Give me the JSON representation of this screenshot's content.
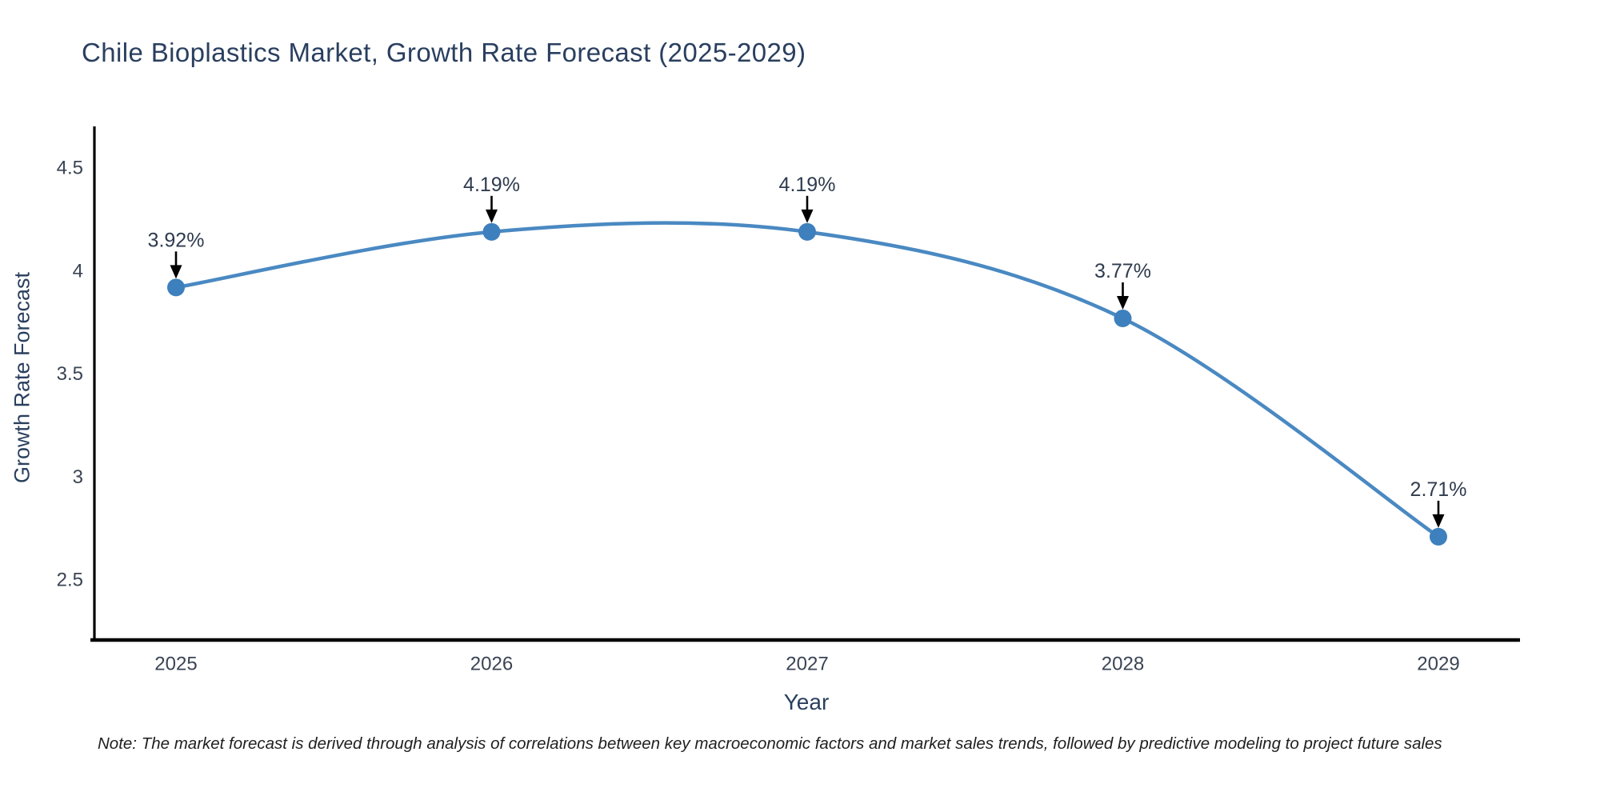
{
  "title": "Chile Bioplastics Market, Growth Rate Forecast (2025-2029)",
  "note": "Note: The market forecast is derived through analysis of correlations between key macroeconomic factors and market sales trends, followed by predictive modeling to project future sales",
  "chart_data": {
    "type": "line",
    "line_shape": "spline",
    "title": "Chile Bioplastics Market, Growth Rate Forecast (2025-2029)",
    "xlabel": "Year",
    "ylabel": "Growth Rate Forecast",
    "categories": [
      "2025",
      "2026",
      "2027",
      "2028",
      "2029"
    ],
    "values": [
      3.92,
      4.19,
      4.19,
      3.77,
      2.71
    ],
    "point_labels": [
      "3.92%",
      "4.19%",
      "4.19%",
      "3.77%",
      "2.71%"
    ],
    "y_ticks": [
      4.5,
      4,
      3.5,
      3,
      2.5
    ],
    "ylim": [
      2.21,
      4.7
    ],
    "grid": false,
    "legend": "none",
    "annotations_style": "percent value above each point with black arrow pointing down to marker",
    "colors": {
      "line": "#4a89c2",
      "marker": "#3d80bd",
      "axis": "#000000",
      "arrow": "#000000",
      "title_text": "#2a3f5f",
      "tick_text": "#3a4454",
      "note_text": "#1f1f1f"
    }
  }
}
